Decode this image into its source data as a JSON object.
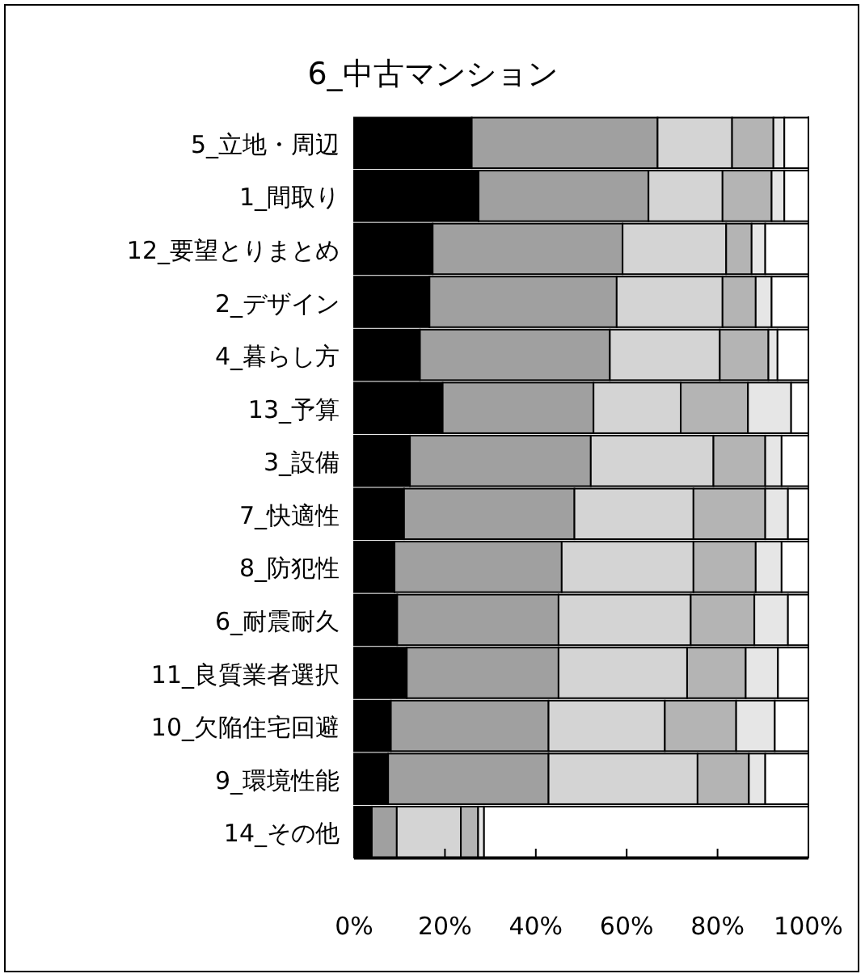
{
  "chart_data": {
    "type": "bar",
    "orientation": "horizontal",
    "stacked": true,
    "title": "6_中古マンション",
    "categories": [
      "5_立地・周辺",
      "1_間取り",
      "12_要望とりまとめ",
      "2_デザイン",
      "4_暮らし方",
      "13_予算",
      "3_設備",
      "7_快適性",
      "8_防犯性",
      "6_耐震耐久",
      "11_良質業者選択",
      "10_欠陥住宅回避",
      "9_環境性能",
      "14_その他"
    ],
    "xlim": [
      0,
      100
    ],
    "xticks": [
      {
        "value": 0,
        "label": "0%"
      },
      {
        "value": 20,
        "label": "20%"
      },
      {
        "value": 40,
        "label": "40%"
      },
      {
        "value": 60,
        "label": "60%"
      },
      {
        "value": 80,
        "label": "80%"
      },
      {
        "value": 100,
        "label": "100%"
      }
    ],
    "grid": false,
    "series": [
      {
        "color": "#000000",
        "values": [
          25.9,
          27.4,
          17.3,
          16.6,
          14.5,
          19.5,
          12.3,
          11.0,
          8.9,
          9.5,
          11.6,
          8.1,
          7.5,
          3.9
        ]
      },
      {
        "color": "#a0a0a0",
        "values": [
          40.9,
          37.4,
          41.8,
          41.2,
          41.8,
          33.2,
          39.8,
          37.5,
          36.8,
          35.5,
          33.4,
          34.7,
          35.3,
          5.5
        ]
      },
      {
        "color": "#d4d4d4",
        "values": [
          16.4,
          16.3,
          22.8,
          23.3,
          24.2,
          19.2,
          27.0,
          26.2,
          29.0,
          29.1,
          28.3,
          25.6,
          32.8,
          14.1
        ]
      },
      {
        "color": "#b4b4b4",
        "values": [
          9.1,
          10.8,
          5.6,
          7.3,
          10.7,
          14.8,
          11.4,
          15.8,
          13.7,
          14.0,
          12.9,
          15.7,
          11.3,
          3.8
        ]
      },
      {
        "color": "#e6e6e6",
        "values": [
          2.4,
          2.8,
          3.0,
          3.5,
          2.0,
          9.5,
          3.6,
          5.0,
          5.7,
          7.4,
          7.1,
          8.5,
          3.6,
          1.3
        ]
      },
      {
        "color": "#ffffff",
        "values": [
          5.3,
          5.3,
          9.5,
          8.1,
          6.8,
          3.8,
          5.9,
          4.5,
          5.9,
          4.5,
          6.7,
          7.4,
          9.5,
          71.4
        ]
      }
    ]
  }
}
